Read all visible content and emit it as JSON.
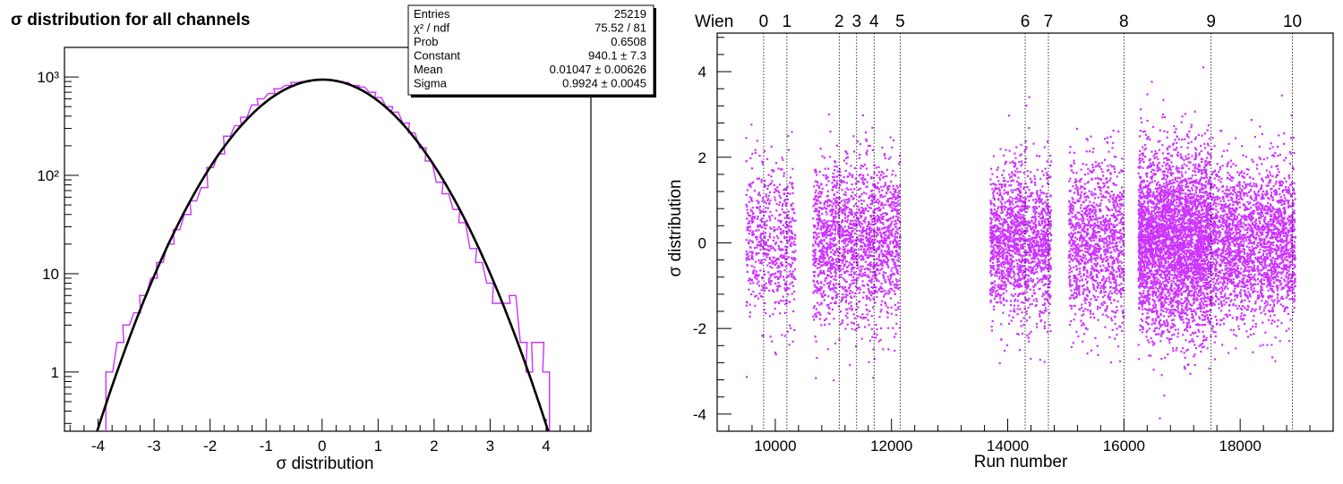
{
  "left": {
    "title": "σ distribution for all channels",
    "xlabel": "σ distribution",
    "stats": [
      {
        "label": "Entries",
        "value": "25219"
      },
      {
        "label": "χ² / ndf",
        "value": "75.52 / 81"
      },
      {
        "label": "Prob",
        "value": "0.6508"
      },
      {
        "label": "Constant",
        "value": "940.1 ± 7.3"
      },
      {
        "label": "Mean",
        "value": "0.01047 ± 0.00626"
      },
      {
        "label": "Sigma",
        "value": "0.9924 ± 0.0045"
      }
    ]
  },
  "right": {
    "xlabel": "Run number",
    "ylabel": "σ distribution",
    "wien_label": "Wien"
  },
  "chart_data": [
    {
      "type": "histogram",
      "title": "σ distribution for all channels",
      "xlabel": "σ distribution",
      "ylabel": "",
      "xlim": [
        -4.6,
        4.8
      ],
      "ylim": [
        0.25,
        2000
      ],
      "yscale": "log",
      "xticks": [
        -4,
        -3,
        -2,
        -1,
        0,
        1,
        2,
        3,
        4
      ],
      "yticks": [
        {
          "value": 1,
          "label": "1"
        },
        {
          "value": 10,
          "label": "10"
        },
        {
          "value": 100,
          "label": "10²"
        },
        {
          "value": 1000,
          "label": "10³"
        }
      ],
      "color": "#cc33ff",
      "fit": {
        "function": "gaus",
        "constant": 940.1,
        "mean": 0.01047,
        "sigma": 0.9924,
        "color": "#000000"
      },
      "histogram_bins": [
        [
          -3.8,
          1
        ],
        [
          -3.6,
          2
        ],
        [
          -3.5,
          3
        ],
        [
          -3.3,
          4
        ],
        [
          -3.2,
          6
        ],
        [
          -3.0,
          9
        ],
        [
          -2.9,
          13
        ],
        [
          -2.7,
          20
        ],
        [
          -2.6,
          28
        ],
        [
          -2.4,
          40
        ],
        [
          -2.3,
          55
        ],
        [
          -2.1,
          75
        ],
        [
          -2.0,
          120
        ],
        [
          -1.8,
          165
        ],
        [
          -1.7,
          250
        ],
        [
          -1.5,
          320
        ],
        [
          -1.4,
          390
        ],
        [
          -1.2,
          520
        ],
        [
          -1.1,
          600
        ],
        [
          -0.9,
          680
        ],
        [
          -0.8,
          760
        ],
        [
          -0.6,
          820
        ],
        [
          -0.5,
          880
        ],
        [
          -0.3,
          900
        ],
        [
          -0.2,
          920
        ],
        [
          0.0,
          950
        ],
        [
          0.1,
          940
        ],
        [
          0.3,
          900
        ],
        [
          0.4,
          880
        ],
        [
          0.6,
          820
        ],
        [
          0.7,
          790
        ],
        [
          0.9,
          700
        ],
        [
          1.0,
          620
        ],
        [
          1.2,
          500
        ],
        [
          1.3,
          440
        ],
        [
          1.5,
          340
        ],
        [
          1.6,
          270
        ],
        [
          1.8,
          190
        ],
        [
          1.9,
          140
        ],
        [
          2.1,
          85
        ],
        [
          2.2,
          65
        ],
        [
          2.4,
          45
        ],
        [
          2.5,
          33
        ],
        [
          2.7,
          18
        ],
        [
          2.8,
          13
        ],
        [
          3.0,
          8
        ],
        [
          3.1,
          5
        ],
        [
          3.3,
          5
        ],
        [
          3.4,
          6
        ],
        [
          3.6,
          2
        ],
        [
          3.7,
          1
        ],
        [
          3.8,
          2
        ],
        [
          3.9,
          2
        ],
        [
          4.0,
          1
        ]
      ],
      "stats": [
        {
          "label": "Entries",
          "value": "25219"
        },
        {
          "label": "χ² / ndf",
          "value": "75.52 / 81"
        },
        {
          "label": "Prob",
          "value": "0.6508"
        },
        {
          "label": "Constant",
          "value": "940.1 ± 7.3"
        },
        {
          "label": "Mean",
          "value": "0.01047 ± 0.00626"
        },
        {
          "label": "Sigma",
          "value": "0.9924 ± 0.0045"
        }
      ]
    },
    {
      "type": "scatter",
      "title": "",
      "xlabel": "Run number",
      "ylabel": "σ distribution",
      "xlim": [
        9000,
        19600
      ],
      "ylim": [
        -4.4,
        4.9
      ],
      "xticks": [
        10000,
        12000,
        14000,
        16000,
        18000
      ],
      "yticks": [
        -4,
        -2,
        0,
        2,
        4
      ],
      "color": "#cc33ff",
      "wien_label": "Wien",
      "wien_boundaries": [
        {
          "label": "0",
          "run": 9800
        },
        {
          "label": "1",
          "run": 10200
        },
        {
          "label": "2",
          "run": 11100
        },
        {
          "label": "3",
          "run": 11400
        },
        {
          "label": "4",
          "run": 11700
        },
        {
          "label": "5",
          "run": 12150
        },
        {
          "label": "6",
          "run": 14300
        },
        {
          "label": "7",
          "run": 14700
        },
        {
          "label": "8",
          "run": 16000
        },
        {
          "label": "9",
          "run": 17500
        },
        {
          "label": "10",
          "run": 18900
        }
      ],
      "point_clusters": [
        {
          "run_range": [
            9500,
            10350
          ],
          "points": 1400,
          "sigma": 0.9
        },
        {
          "run_range": [
            10650,
            12150
          ],
          "points": 4200,
          "sigma": 0.95
        },
        {
          "run_range": [
            13700,
            14750
          ],
          "points": 3600,
          "sigma": 0.9
        },
        {
          "run_range": [
            15050,
            16000
          ],
          "points": 2700,
          "sigma": 0.95
        },
        {
          "run_range": [
            16250,
            17500
          ],
          "points": 8200,
          "sigma": 1.05
        },
        {
          "run_range": [
            17500,
            18950
          ],
          "points": 5100,
          "sigma": 0.9
        }
      ]
    }
  ]
}
